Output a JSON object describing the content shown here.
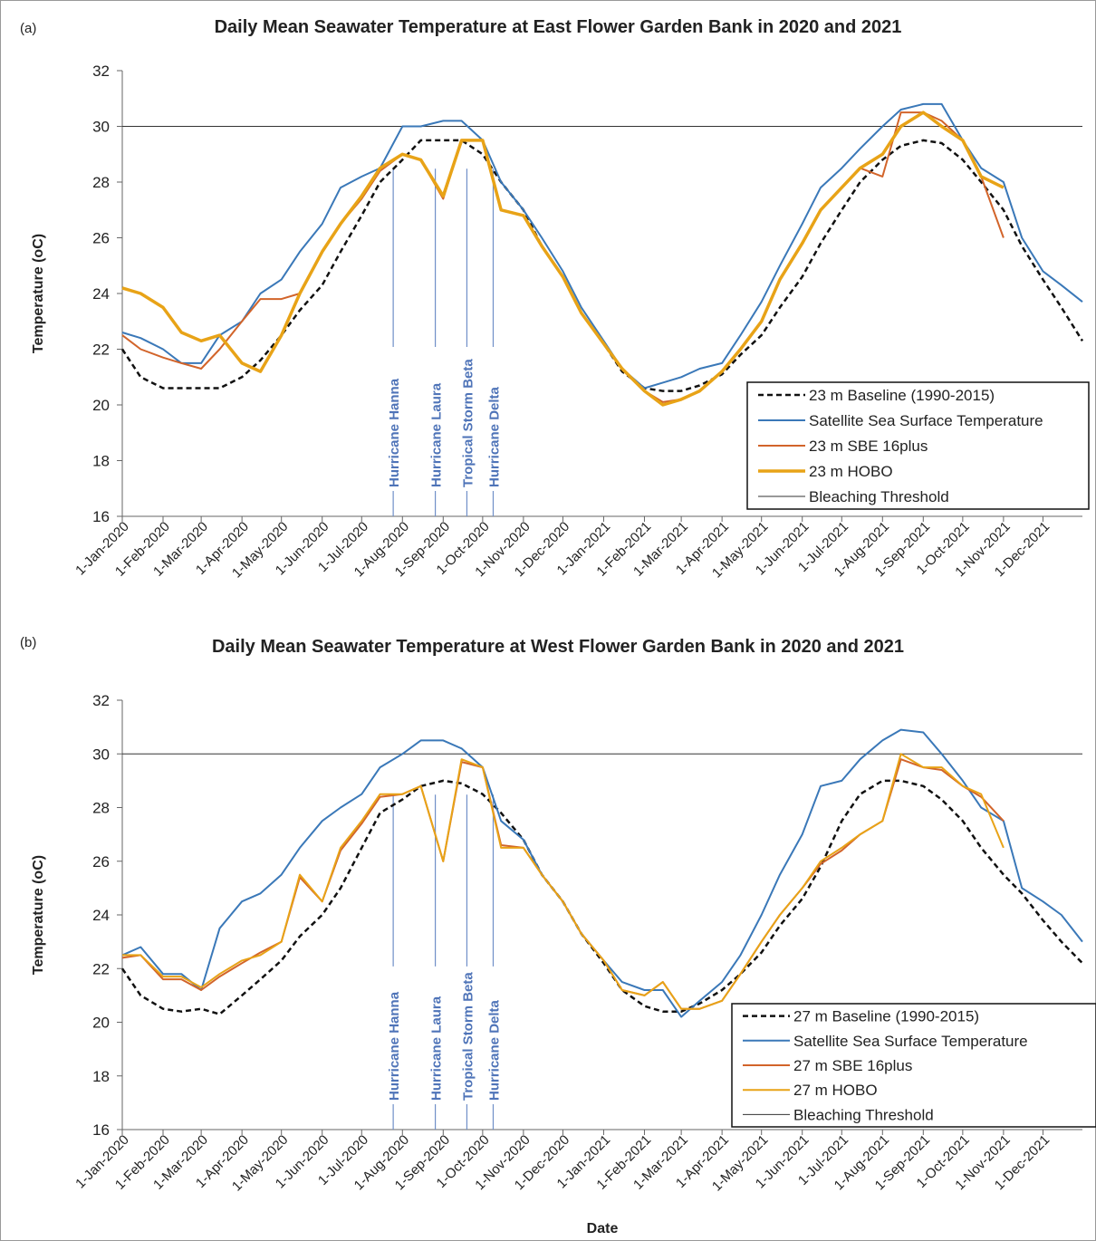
{
  "chart_data": [
    {
      "type": "line",
      "panel_label": "(a)",
      "title": "Daily Mean Seawater Temperature at East Flower Garden Bank in 2020 and 2021",
      "y_label": "Temperature (oC)",
      "x": [
        "2020-01-01",
        "2020-01-15",
        "2020-02-01",
        "2020-02-15",
        "2020-03-01",
        "2020-03-15",
        "2020-04-01",
        "2020-04-15",
        "2020-05-01",
        "2020-05-15",
        "2020-06-01",
        "2020-06-15",
        "2020-07-01",
        "2020-07-15",
        "2020-08-01",
        "2020-08-15",
        "2020-09-01",
        "2020-09-15",
        "2020-10-01",
        "2020-10-15",
        "2020-11-01",
        "2020-11-15",
        "2020-12-01",
        "2020-12-15",
        "2021-01-01",
        "2021-01-15",
        "2021-02-01",
        "2021-02-15",
        "2021-03-01",
        "2021-03-15",
        "2021-04-01",
        "2021-04-15",
        "2021-05-01",
        "2021-05-15",
        "2021-06-01",
        "2021-06-15",
        "2021-07-01",
        "2021-07-15",
        "2021-08-01",
        "2021-08-15",
        "2021-09-01",
        "2021-09-15",
        "2021-10-01",
        "2021-10-15",
        "2021-11-01",
        "2021-11-15",
        "2021-12-01",
        "2021-12-15",
        "2021-12-31"
      ],
      "series": [
        {
          "name": "23 m Baseline (1990-2015)",
          "color": "#111111",
          "dashed": true,
          "linewidth": 2.5,
          "values": [
            22.0,
            21.0,
            20.6,
            20.6,
            20.6,
            20.6,
            21.0,
            21.6,
            22.5,
            23.4,
            24.3,
            25.5,
            26.8,
            28.0,
            28.8,
            29.5,
            29.5,
            29.5,
            29.0,
            28.0,
            27.0,
            25.7,
            24.6,
            23.3,
            22.2,
            21.2,
            20.6,
            20.5,
            20.5,
            20.7,
            21.1,
            21.8,
            22.5,
            23.5,
            24.6,
            25.8,
            27.0,
            28.0,
            28.8,
            29.3,
            29.5,
            29.4,
            28.8,
            28.0,
            27.0,
            25.7,
            24.5,
            23.5,
            22.3
          ]
        },
        {
          "name": "Satellite Sea Surface Temperature",
          "color": "#3a78b8",
          "dashed": false,
          "linewidth": 2,
          "values": [
            22.6,
            22.4,
            22.0,
            21.5,
            21.5,
            22.5,
            23.0,
            24.0,
            24.5,
            25.5,
            26.5,
            27.8,
            28.2,
            28.5,
            30.0,
            30.0,
            30.2,
            30.2,
            29.5,
            28.0,
            27.0,
            26.0,
            24.8,
            23.5,
            22.3,
            21.3,
            20.6,
            20.8,
            21.0,
            21.3,
            21.5,
            22.5,
            23.7,
            25.0,
            26.5,
            27.8,
            28.5,
            29.2,
            30.0,
            30.6,
            30.8,
            30.8,
            29.5,
            28.5,
            28.0,
            26.0,
            24.8,
            24.3,
            23.7
          ]
        },
        {
          "name": "23 m SBE 16plus",
          "color": "#d2642a",
          "dashed": false,
          "linewidth": 2,
          "values": [
            22.5,
            22.0,
            21.7,
            21.5,
            21.3,
            22.0,
            23.0,
            23.8,
            23.8,
            24.0,
            25.5,
            26.5,
            27.4,
            28.4,
            29.0,
            28.8,
            27.4,
            29.5,
            29.5,
            27.0,
            26.8,
            25.7,
            24.6,
            23.3,
            22.2,
            21.3,
            20.5,
            20.1,
            20.2,
            20.5,
            21.2,
            22.0,
            23.0,
            24.5,
            25.8,
            27.0,
            27.8,
            28.5,
            28.2,
            30.5,
            30.5,
            30.2,
            29.5,
            28.2,
            26.0,
            null,
            null,
            null,
            null
          ]
        },
        {
          "name": "23 m HOBO",
          "color": "#e8a317",
          "dashed": false,
          "linewidth": 3.5,
          "values": [
            24.2,
            24.0,
            23.5,
            22.6,
            22.3,
            22.5,
            21.5,
            21.2,
            22.5,
            24.0,
            25.5,
            26.5,
            27.5,
            28.5,
            29.0,
            28.8,
            27.5,
            29.5,
            29.5,
            27.0,
            26.8,
            25.7,
            24.6,
            23.3,
            22.2,
            21.3,
            20.5,
            20.0,
            20.2,
            20.5,
            21.2,
            22.0,
            23.0,
            24.5,
            25.8,
            27.0,
            27.8,
            28.5,
            29.0,
            30.0,
            30.5,
            30.0,
            29.5,
            28.2,
            27.8,
            null,
            null,
            null,
            null
          ]
        }
      ],
      "reference_line": {
        "name": "Bleaching Threshold",
        "value": 30,
        "color": "#333333"
      },
      "annotations": [
        {
          "x": "2020-07-25",
          "text": "Hurricane Hanna"
        },
        {
          "x": "2020-08-26",
          "text": "Hurricane Laura"
        },
        {
          "x": "2020-09-19",
          "text": "Tropical Storm Beta"
        },
        {
          "x": "2020-10-09",
          "text": "Hurricane Delta"
        }
      ],
      "xlim": [
        "2020-01-01",
        "2021-12-31"
      ],
      "xticks": [
        {
          "value": "2020-01-01",
          "label": "1-Jan-2020"
        },
        {
          "value": "2020-02-01",
          "label": "1-Feb-2020"
        },
        {
          "value": "2020-03-01",
          "label": "1-Mar-2020"
        },
        {
          "value": "2020-04-01",
          "label": "1-Apr-2020"
        },
        {
          "value": "2020-05-01",
          "label": "1-May-2020"
        },
        {
          "value": "2020-06-01",
          "label": "1-Jun-2020"
        },
        {
          "value": "2020-07-01",
          "label": "1-Jul-2020"
        },
        {
          "value": "2020-08-01",
          "label": "1-Aug-2020"
        },
        {
          "value": "2020-09-01",
          "label": "1-Sep-2020"
        },
        {
          "value": "2020-10-01",
          "label": "1-Oct-2020"
        },
        {
          "value": "2020-11-01",
          "label": "1-Nov-2020"
        },
        {
          "value": "2020-12-01",
          "label": "1-Dec-2020"
        },
        {
          "value": "2021-01-01",
          "label": "1-Jan-2021"
        },
        {
          "value": "2021-02-01",
          "label": "1-Feb-2021"
        },
        {
          "value": "2021-03-01",
          "label": "1-Mar-2021"
        },
        {
          "value": "2021-04-01",
          "label": "1-Apr-2021"
        },
        {
          "value": "2021-05-01",
          "label": "1-May-2021"
        },
        {
          "value": "2021-06-01",
          "label": "1-Jun-2021"
        },
        {
          "value": "2021-07-01",
          "label": "1-Jul-2021"
        },
        {
          "value": "2021-08-01",
          "label": "1-Aug-2021"
        },
        {
          "value": "2021-09-01",
          "label": "1-Sep-2021"
        },
        {
          "value": "2021-10-01",
          "label": "1-Oct-2021"
        },
        {
          "value": "2021-11-01",
          "label": "1-Nov-2021"
        },
        {
          "value": "2021-12-01",
          "label": "1-Dec-2021"
        }
      ],
      "ylim": [
        16,
        32
      ],
      "yticks": [
        16,
        18,
        20,
        22,
        24,
        26,
        28,
        30,
        32
      ],
      "legend": "lower right"
    },
    {
      "type": "line",
      "panel_label": "(b)",
      "title": "Daily Mean Seawater Temperature at West Flower Garden Bank in 2020 and 2021",
      "y_label": "Temperature (oC)",
      "x_label": "Date",
      "x": [
        "2020-01-01",
        "2020-01-15",
        "2020-02-01",
        "2020-02-15",
        "2020-03-01",
        "2020-03-15",
        "2020-04-01",
        "2020-04-15",
        "2020-05-01",
        "2020-05-15",
        "2020-06-01",
        "2020-06-15",
        "2020-07-01",
        "2020-07-15",
        "2020-08-01",
        "2020-08-15",
        "2020-09-01",
        "2020-09-15",
        "2020-10-01",
        "2020-10-15",
        "2020-11-01",
        "2020-11-15",
        "2020-12-01",
        "2020-12-15",
        "2021-01-01",
        "2021-01-15",
        "2021-02-01",
        "2021-02-15",
        "2021-03-01",
        "2021-03-15",
        "2021-04-01",
        "2021-04-15",
        "2021-05-01",
        "2021-05-15",
        "2021-06-01",
        "2021-06-15",
        "2021-07-01",
        "2021-07-15",
        "2021-08-01",
        "2021-08-15",
        "2021-09-01",
        "2021-09-15",
        "2021-10-01",
        "2021-10-15",
        "2021-11-01",
        "2021-11-15",
        "2021-12-01",
        "2021-12-15",
        "2021-12-31"
      ],
      "series": [
        {
          "name": "27 m Baseline (1990-2015)",
          "color": "#111111",
          "dashed": true,
          "linewidth": 2.5,
          "values": [
            22.0,
            21.0,
            20.5,
            20.4,
            20.5,
            20.3,
            21.0,
            21.6,
            22.3,
            23.2,
            24.0,
            25.0,
            26.5,
            27.8,
            28.3,
            28.8,
            29.0,
            28.9,
            28.5,
            27.8,
            26.8,
            25.5,
            24.5,
            23.3,
            22.2,
            21.2,
            20.6,
            20.4,
            20.4,
            20.7,
            21.2,
            21.8,
            22.6,
            23.6,
            24.6,
            25.8,
            27.5,
            28.5,
            29.0,
            29.0,
            28.8,
            28.3,
            27.5,
            26.5,
            25.5,
            24.8,
            23.8,
            23.0,
            22.2
          ]
        },
        {
          "name": "Satellite Sea Surface Temperature",
          "color": "#3a78b8",
          "dashed": false,
          "linewidth": 2,
          "values": [
            22.5,
            22.8,
            21.8,
            21.8,
            21.2,
            23.5,
            24.5,
            24.8,
            25.5,
            26.5,
            27.5,
            28.0,
            28.5,
            29.5,
            30.0,
            30.5,
            30.5,
            30.2,
            29.5,
            27.5,
            26.8,
            25.5,
            24.5,
            23.3,
            22.3,
            21.5,
            21.2,
            21.2,
            20.2,
            20.8,
            21.5,
            22.5,
            24.0,
            25.5,
            27.0,
            28.8,
            29.0,
            29.8,
            30.5,
            30.9,
            30.8,
            30.0,
            29.0,
            28.0,
            27.5,
            25.0,
            24.5,
            24.0,
            23.0
          ]
        },
        {
          "name": "27 m SBE 16plus",
          "color": "#d2642a",
          "dashed": false,
          "linewidth": 2,
          "values": [
            22.4,
            22.5,
            21.6,
            21.6,
            21.2,
            21.7,
            22.2,
            22.6,
            23.0,
            25.4,
            24.5,
            26.4,
            27.4,
            28.4,
            28.5,
            28.8,
            26.0,
            29.7,
            29.5,
            26.6,
            26.5,
            25.5,
            24.5,
            23.3,
            22.3,
            21.2,
            21.0,
            21.5,
            20.5,
            20.5,
            20.8,
            21.8,
            23.0,
            24.0,
            25.0,
            25.9,
            26.4,
            27.0,
            27.5,
            29.8,
            29.5,
            29.4,
            28.8,
            28.4,
            27.5,
            null,
            null,
            null,
            null
          ]
        },
        {
          "name": "27 m HOBO",
          "color": "#e8a317",
          "dashed": false,
          "linewidth": 2,
          "values": [
            22.5,
            22.5,
            21.7,
            21.7,
            21.3,
            21.8,
            22.3,
            22.5,
            23.0,
            25.5,
            24.5,
            26.5,
            27.5,
            28.5,
            28.5,
            28.8,
            26.0,
            29.8,
            29.5,
            26.5,
            26.5,
            25.5,
            24.5,
            23.3,
            22.3,
            21.2,
            21.0,
            21.5,
            20.5,
            20.5,
            20.8,
            21.8,
            23.0,
            24.0,
            25.0,
            26.0,
            26.5,
            27.0,
            27.5,
            30.0,
            29.5,
            29.5,
            28.8,
            28.5,
            26.5,
            null,
            null,
            null,
            null
          ]
        }
      ],
      "reference_line": {
        "name": "Bleaching Threshold",
        "value": 30,
        "color": "#333333"
      },
      "annotations": [
        {
          "x": "2020-07-25",
          "text": "Hurricane Hanna"
        },
        {
          "x": "2020-08-26",
          "text": "Hurricane Laura"
        },
        {
          "x": "2020-09-19",
          "text": "Tropical Storm Beta"
        },
        {
          "x": "2020-10-09",
          "text": "Hurricane Delta"
        }
      ],
      "xlim": [
        "2020-01-01",
        "2021-12-31"
      ],
      "xticks": [
        {
          "value": "2020-01-01",
          "label": "1-Jan-2020"
        },
        {
          "value": "2020-02-01",
          "label": "1-Feb-2020"
        },
        {
          "value": "2020-03-01",
          "label": "1-Mar-2020"
        },
        {
          "value": "2020-04-01",
          "label": "1-Apr-2020"
        },
        {
          "value": "2020-05-01",
          "label": "1-May-2020"
        },
        {
          "value": "2020-06-01",
          "label": "1-Jun-2020"
        },
        {
          "value": "2020-07-01",
          "label": "1-Jul-2020"
        },
        {
          "value": "2020-08-01",
          "label": "1-Aug-2020"
        },
        {
          "value": "2020-09-01",
          "label": "1-Sep-2020"
        },
        {
          "value": "2020-10-01",
          "label": "1-Oct-2020"
        },
        {
          "value": "2020-11-01",
          "label": "1-Nov-2020"
        },
        {
          "value": "2020-12-01",
          "label": "1-Dec-2020"
        },
        {
          "value": "2021-01-01",
          "label": "1-Jan-2021"
        },
        {
          "value": "2021-02-01",
          "label": "1-Feb-2021"
        },
        {
          "value": "2021-03-01",
          "label": "1-Mar-2021"
        },
        {
          "value": "2021-04-01",
          "label": "1-Apr-2021"
        },
        {
          "value": "2021-05-01",
          "label": "1-May-2021"
        },
        {
          "value": "2021-06-01",
          "label": "1-Jun-2021"
        },
        {
          "value": "2021-07-01",
          "label": "1-Jul-2021"
        },
        {
          "value": "2021-08-01",
          "label": "1-Aug-2021"
        },
        {
          "value": "2021-09-01",
          "label": "1-Sep-2021"
        },
        {
          "value": "2021-10-01",
          "label": "1-Oct-2021"
        },
        {
          "value": "2021-11-01",
          "label": "1-Nov-2021"
        },
        {
          "value": "2021-12-01",
          "label": "1-Dec-2021"
        }
      ],
      "ylim": [
        16,
        32
      ],
      "yticks": [
        16,
        18,
        20,
        22,
        24,
        26,
        28,
        30,
        32
      ],
      "legend": "lower right"
    }
  ]
}
